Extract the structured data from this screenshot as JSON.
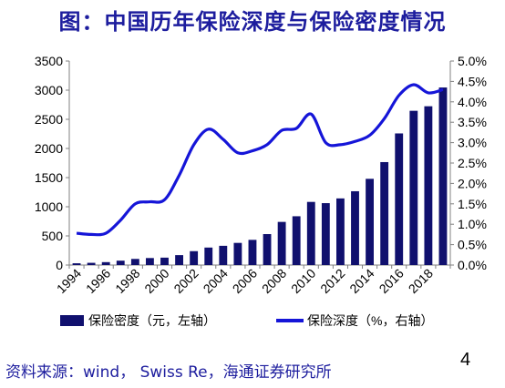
{
  "title": "图：中国历年保险深度与保险密度情况",
  "source": "资料来源：wind， Swiss Re，海通证券研究所",
  "page_number": "4",
  "colors": {
    "bar": "#10106e",
    "line": "#1515d8",
    "title": "#1d1d9e",
    "axis": "#808080"
  },
  "chart_data": {
    "type": "bar+line",
    "x": [
      "1994",
      "1995",
      "1996",
      "1997",
      "1998",
      "1999",
      "2000",
      "2001",
      "2002",
      "2003",
      "2004",
      "2005",
      "2006",
      "2007",
      "2008",
      "2009",
      "2010",
      "2011",
      "2012",
      "2013",
      "2014",
      "2015",
      "2016",
      "2017",
      "2018",
      "2019"
    ],
    "x_tick_labels": [
      "1994",
      "1996",
      "1998",
      "2000",
      "2002",
      "2004",
      "2006",
      "2008",
      "2010",
      "2012",
      "2014",
      "2016",
      "2018"
    ],
    "series": [
      {
        "name": "保险密度（元，左轴）",
        "type": "bar",
        "axis": "left",
        "values": [
          30,
          38,
          50,
          75,
          105,
          120,
          127,
          170,
          238,
          300,
          330,
          380,
          432,
          531,
          740,
          837,
          1083,
          1062,
          1143,
          1266,
          1479,
          1766,
          2258,
          2646,
          2724,
          3046
        ]
      },
      {
        "name": "保险深度（%，右轴）",
        "type": "line",
        "axis": "right",
        "values": [
          0.78,
          0.75,
          0.78,
          1.1,
          1.5,
          1.55,
          1.6,
          2.2,
          2.95,
          3.33,
          3.08,
          2.75,
          2.8,
          2.95,
          3.3,
          3.35,
          3.7,
          3.0,
          2.95,
          3.03,
          3.18,
          3.59,
          4.16,
          4.42,
          4.22,
          4.3
        ]
      }
    ],
    "y_left": {
      "ylim": [
        0,
        3500
      ],
      "ticks": [
        "0",
        "500",
        "1000",
        "1500",
        "2000",
        "2500",
        "3000",
        "3500"
      ]
    },
    "y_right": {
      "ylim": [
        0,
        5.0
      ],
      "ticks": [
        "0.0%",
        "0.5%",
        "1.0%",
        "1.5%",
        "2.0%",
        "2.5%",
        "3.0%",
        "3.5%",
        "4.0%",
        "4.5%",
        "5.0%"
      ]
    },
    "legend": {
      "placement": "bottom",
      "bar_label": "保险密度（元，左轴）",
      "line_label": "保险深度（%，右轴）"
    },
    "grid": false
  }
}
